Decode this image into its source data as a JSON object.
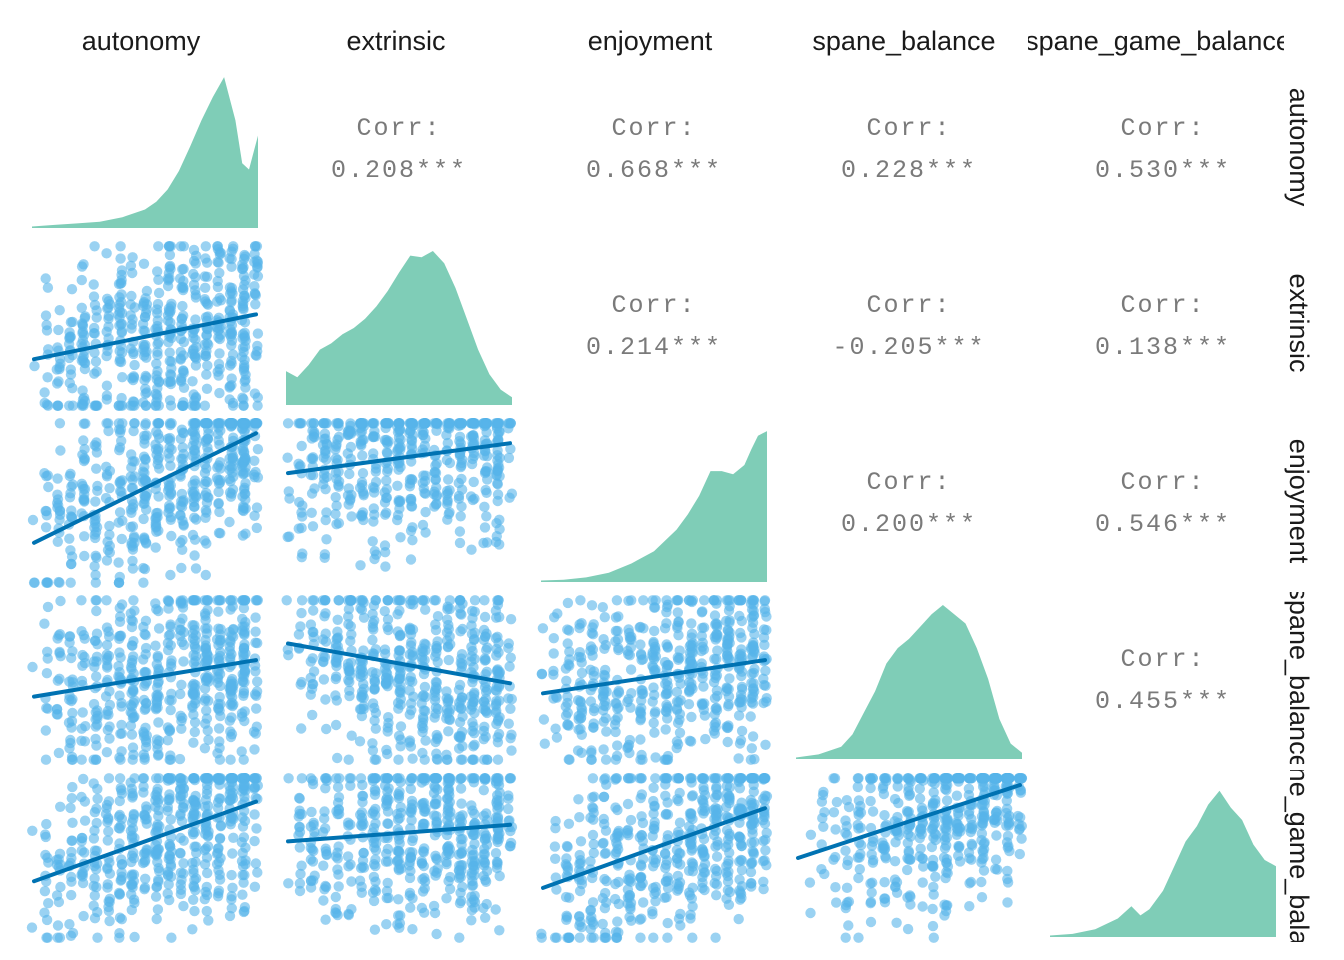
{
  "chart_data": {
    "type": "scatter",
    "title": "",
    "variables": [
      "autonomy",
      "extrinsic",
      "enjoyment",
      "spane_balance",
      "spane_game_balance"
    ],
    "strip_labels": {
      "columns": [
        "autonomy",
        "extrinsic",
        "enjoyment",
        "spane_balance",
        "spane_game_balance"
      ],
      "rows": [
        "autonomy",
        "extrinsic",
        "enjoyment",
        "spane_balance",
        "spane_game_balance"
      ]
    },
    "correlations": [
      {
        "row": "autonomy",
        "col": "extrinsic",
        "title": "Corr:",
        "value": "0.208***"
      },
      {
        "row": "autonomy",
        "col": "enjoyment",
        "title": "Corr:",
        "value": "0.668***"
      },
      {
        "row": "autonomy",
        "col": "spane_balance",
        "title": "Corr:",
        "value": "0.228***"
      },
      {
        "row": "autonomy",
        "col": "spane_game_balance",
        "title": "Corr:",
        "value": "0.530***"
      },
      {
        "row": "extrinsic",
        "col": "enjoyment",
        "title": "Corr:",
        "value": "0.214***"
      },
      {
        "row": "extrinsic",
        "col": "spane_balance",
        "title": "Corr:",
        "value": "-0.205***"
      },
      {
        "row": "extrinsic",
        "col": "spane_game_balance",
        "title": "Corr:",
        "value": "0.138***"
      },
      {
        "row": "enjoyment",
        "col": "spane_balance",
        "title": "Corr:",
        "value": "0.200***"
      },
      {
        "row": "enjoyment",
        "col": "spane_game_balance",
        "title": "Corr:",
        "value": "0.546***"
      },
      {
        "row": "spane_balance",
        "col": "spane_game_balance",
        "title": "Corr:",
        "value": "0.455***"
      }
    ],
    "densities": [
      {
        "var": "autonomy",
        "x": [
          0,
          0.1,
          0.2,
          0.3,
          0.4,
          0.5,
          0.55,
          0.6,
          0.65,
          0.7,
          0.75,
          0.8,
          0.85,
          0.9,
          0.93,
          0.96,
          1.0
        ],
        "y": [
          0.01,
          0.02,
          0.03,
          0.04,
          0.07,
          0.12,
          0.17,
          0.25,
          0.37,
          0.53,
          0.7,
          0.85,
          0.98,
          0.7,
          0.42,
          0.38,
          0.6
        ]
      },
      {
        "var": "extrinsic",
        "x": [
          0,
          0.05,
          0.1,
          0.15,
          0.2,
          0.25,
          0.3,
          0.35,
          0.4,
          0.45,
          0.5,
          0.55,
          0.6,
          0.65,
          0.7,
          0.75,
          0.8,
          0.85,
          0.9,
          0.95,
          1.0
        ],
        "y": [
          0.22,
          0.18,
          0.26,
          0.36,
          0.4,
          0.46,
          0.5,
          0.56,
          0.64,
          0.74,
          0.86,
          0.97,
          0.96,
          1.0,
          0.92,
          0.76,
          0.56,
          0.36,
          0.2,
          0.1,
          0.05
        ]
      },
      {
        "var": "enjoyment",
        "x": [
          0,
          0.1,
          0.2,
          0.3,
          0.4,
          0.5,
          0.6,
          0.65,
          0.7,
          0.75,
          0.8,
          0.85,
          0.9,
          0.93,
          0.96,
          1.0
        ],
        "y": [
          0.01,
          0.015,
          0.03,
          0.06,
          0.12,
          0.2,
          0.34,
          0.44,
          0.56,
          0.72,
          0.72,
          0.7,
          0.76,
          0.86,
          0.95,
          0.98
        ]
      },
      {
        "var": "spane_balance",
        "x": [
          0,
          0.1,
          0.2,
          0.25,
          0.3,
          0.35,
          0.4,
          0.45,
          0.5,
          0.55,
          0.6,
          0.65,
          0.7,
          0.75,
          0.8,
          0.85,
          0.9,
          0.95,
          1.0
        ],
        "y": [
          0.01,
          0.03,
          0.08,
          0.16,
          0.3,
          0.44,
          0.62,
          0.72,
          0.78,
          0.86,
          0.94,
          1.0,
          0.94,
          0.88,
          0.72,
          0.52,
          0.26,
          0.1,
          0.04
        ]
      },
      {
        "var": "spane_game_balance",
        "x": [
          0,
          0.1,
          0.2,
          0.3,
          0.36,
          0.4,
          0.44,
          0.5,
          0.55,
          0.6,
          0.65,
          0.7,
          0.75,
          0.8,
          0.85,
          0.9,
          0.95,
          1.0
        ],
        "y": [
          0.01,
          0.02,
          0.05,
          0.12,
          0.2,
          0.14,
          0.18,
          0.3,
          0.46,
          0.62,
          0.72,
          0.86,
          0.95,
          0.84,
          0.76,
          0.6,
          0.5,
          0.46
        ]
      }
    ],
    "regressions": [
      {
        "row": "extrinsic",
        "col": "autonomy",
        "y_start": 0.3,
        "y_end": 0.57
      },
      {
        "row": "enjoyment",
        "col": "autonomy",
        "y_start": 0.26,
        "y_end": 0.92
      },
      {
        "row": "enjoyment",
        "col": "extrinsic",
        "y_start": 0.68,
        "y_end": 0.86
      },
      {
        "row": "spane_balance",
        "col": "autonomy",
        "y_start": 0.4,
        "y_end": 0.62
      },
      {
        "row": "spane_balance",
        "col": "extrinsic",
        "y_start": 0.72,
        "y_end": 0.48
      },
      {
        "row": "spane_balance",
        "col": "enjoyment",
        "y_start": 0.42,
        "y_end": 0.62
      },
      {
        "row": "spane_game_balance",
        "col": "autonomy",
        "y_start": 0.36,
        "y_end": 0.84
      },
      {
        "row": "spane_game_balance",
        "col": "extrinsic",
        "y_start": 0.6,
        "y_end": 0.7
      },
      {
        "row": "spane_game_balance",
        "col": "enjoyment",
        "y_start": 0.32,
        "y_end": 0.8
      },
      {
        "row": "spane_game_balance",
        "col": "spane_balance",
        "y_start": 0.5,
        "y_end": 0.94
      }
    ],
    "colors": {
      "points": "#56b4e9",
      "line": "#0072b2",
      "density": "#7fcdb7",
      "corr_text": "#7a7a7a"
    }
  }
}
